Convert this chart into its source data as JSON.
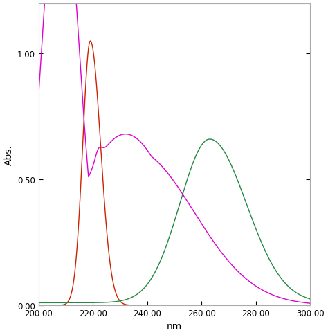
{
  "xlabel": "nm",
  "ylabel": "Abs.",
  "xlim": [
    200.0,
    300.0
  ],
  "ylim": [
    0.0,
    1.2
  ],
  "xticks": [
    200.0,
    220.0,
    240.0,
    260.0,
    280.0,
    300.0
  ],
  "yticks": [
    0.0,
    0.5,
    1.0
  ],
  "background_color": "#ffffff",
  "red_color": "#cc2200",
  "magenta_color": "#dd00cc",
  "green_color": "#228844",
  "linewidth": 1.0
}
